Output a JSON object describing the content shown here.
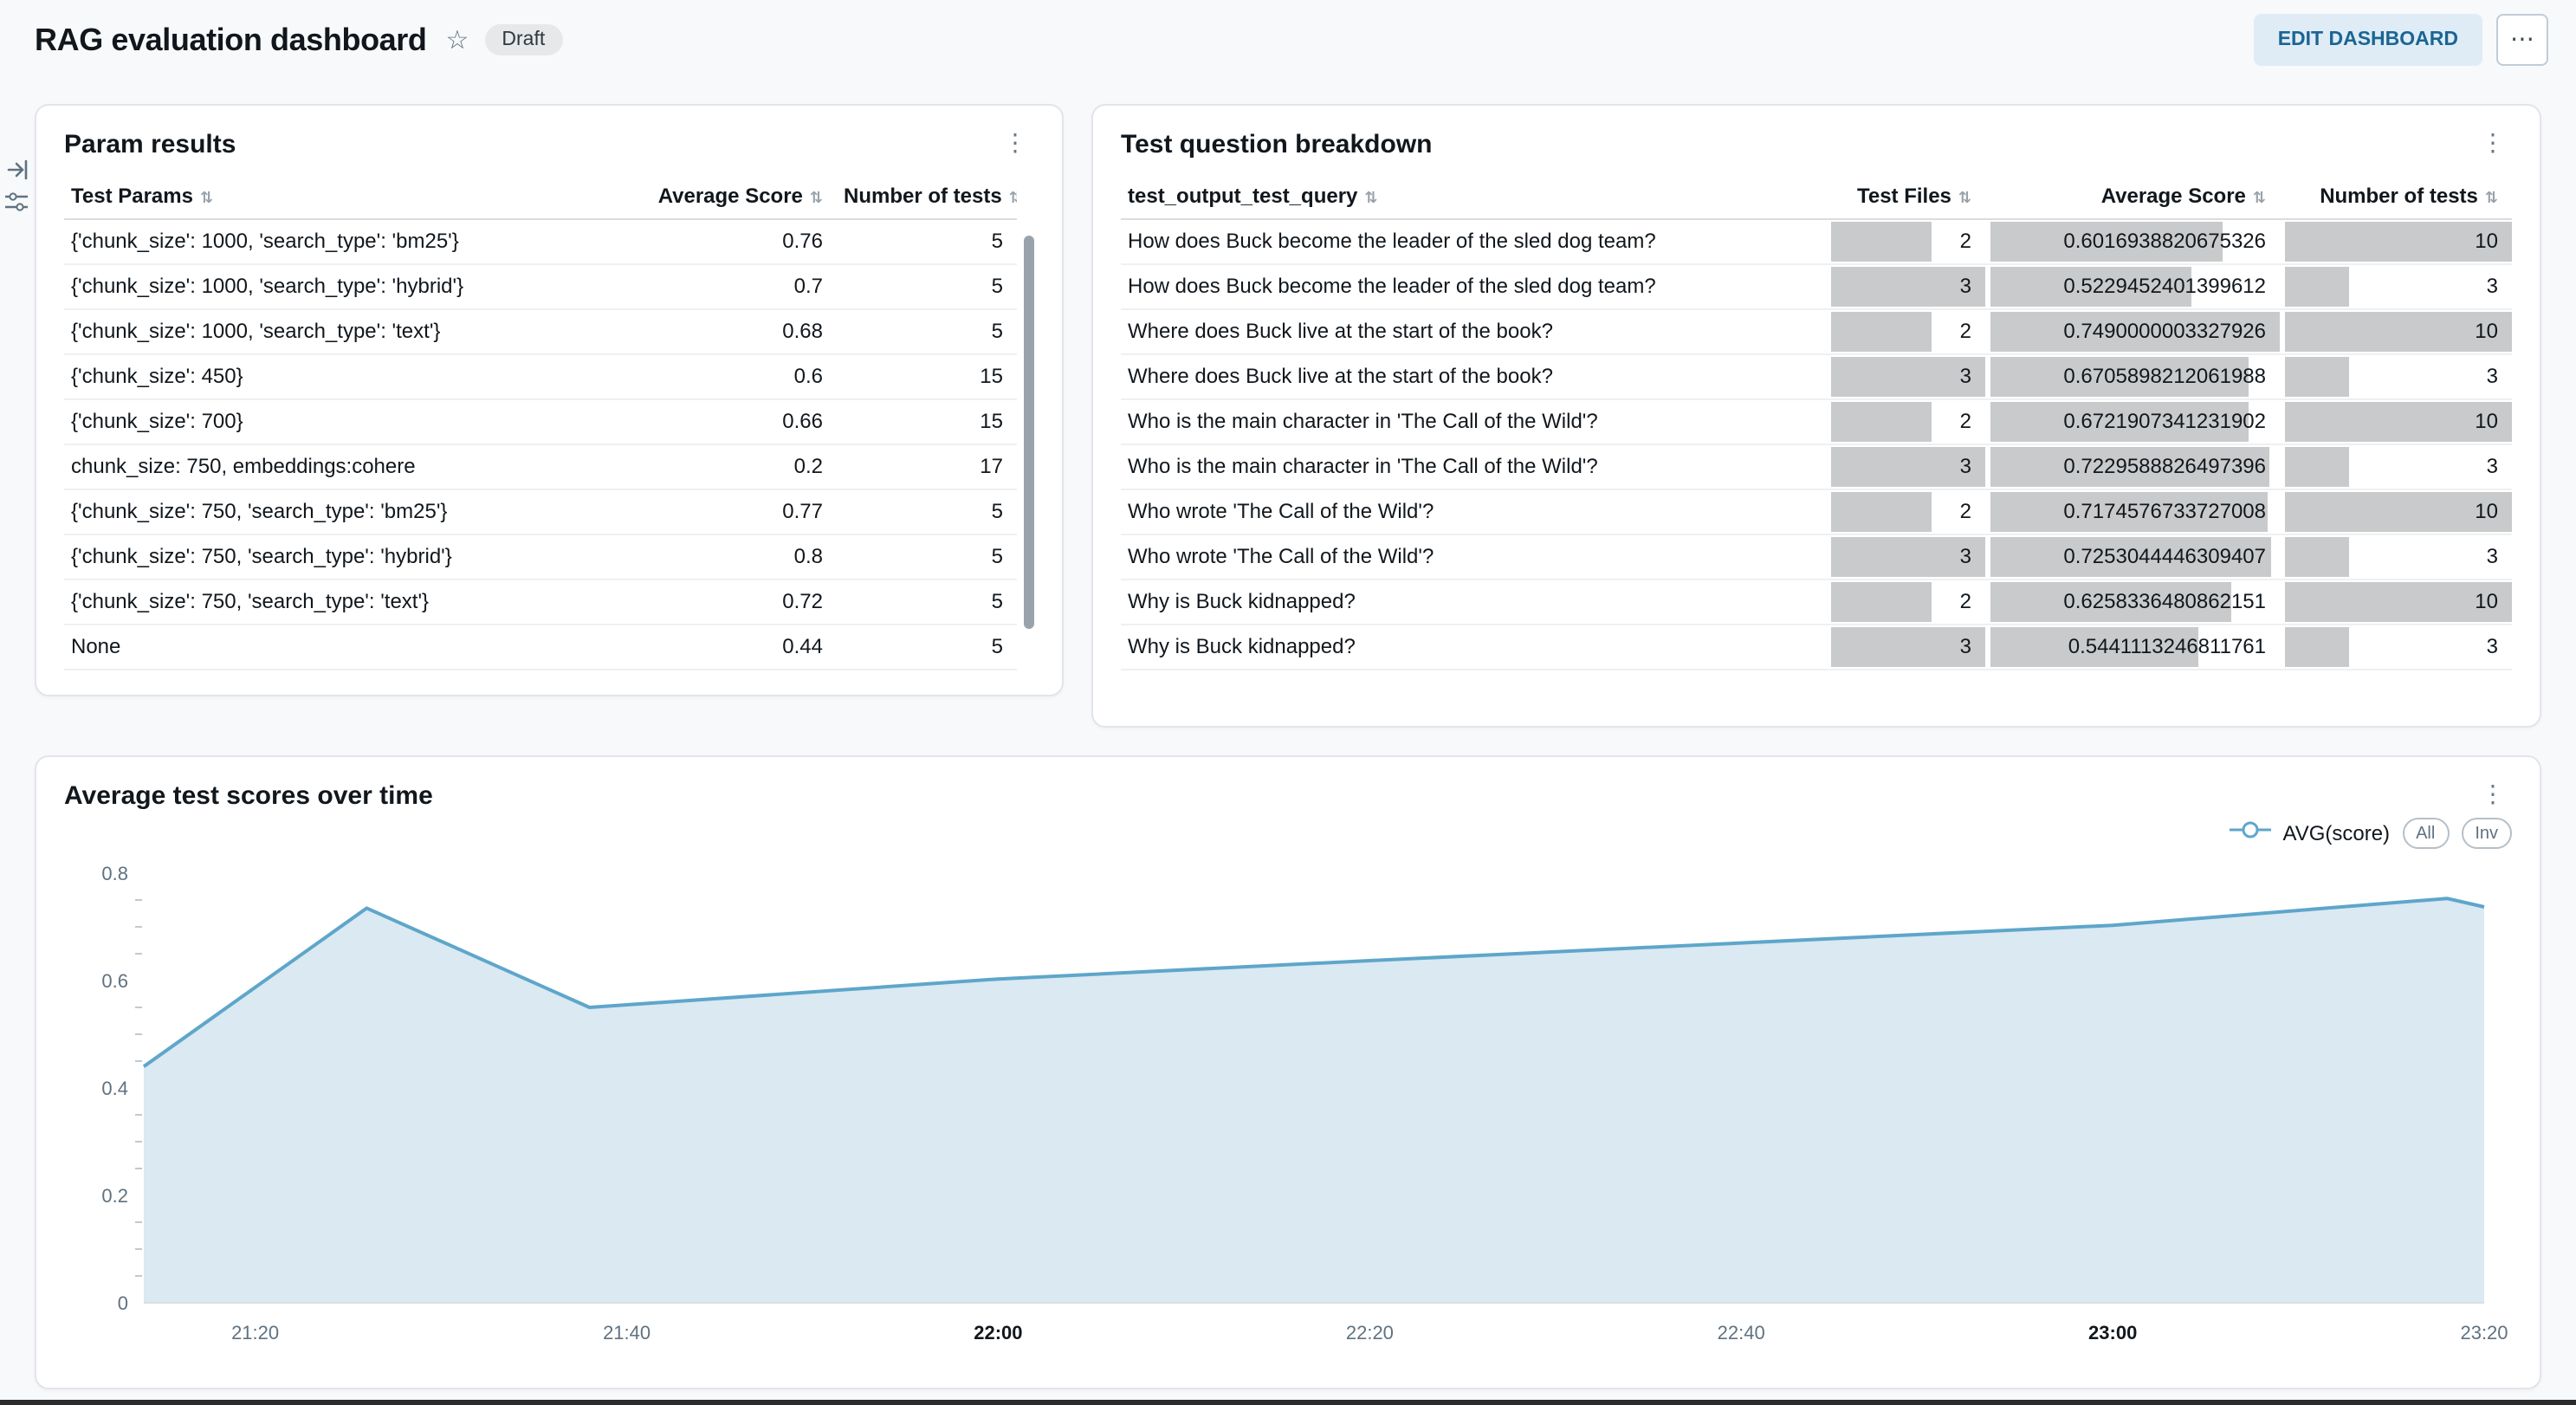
{
  "icons": {
    "star": "☆",
    "more_h": "⋯",
    "kebab_v": "⋮",
    "sort": "⇅",
    "panel_expand": "right-arrow-to-bar",
    "filter": "filter-sliders"
  },
  "header": {
    "title": "RAG evaluation dashboard",
    "status_badge": "Draft",
    "edit_button": "EDIT DASHBOARD"
  },
  "param_results": {
    "title": "Param results",
    "columns": [
      "Test Params",
      "Average Score",
      "Number of tests"
    ],
    "rows": [
      [
        "{'chunk_size': 1000, 'search_type': 'bm25'}",
        "0.76",
        "5"
      ],
      [
        "{'chunk_size': 1000, 'search_type': 'hybrid'}",
        "0.7",
        "5"
      ],
      [
        "{'chunk_size': 1000, 'search_type': 'text'}",
        "0.68",
        "5"
      ],
      [
        "{'chunk_size': 450}",
        "0.6",
        "15"
      ],
      [
        "{'chunk_size': 700}",
        "0.66",
        "15"
      ],
      [
        "chunk_size: 750, embeddings:cohere",
        "0.2",
        "17"
      ],
      [
        "{'chunk_size': 750, 'search_type': 'bm25'}",
        "0.77",
        "5"
      ],
      [
        "{'chunk_size': 750, 'search_type': 'hybrid'}",
        "0.8",
        "5"
      ],
      [
        "{'chunk_size': 750, 'search_type': 'text'}",
        "0.72",
        "5"
      ],
      [
        "None",
        "0.44",
        "5"
      ]
    ]
  },
  "question_breakdown": {
    "title": "Test question breakdown",
    "columns": [
      "test_output_test_query",
      "Test Files",
      "Average Score",
      "Number of tests"
    ],
    "col_max": [
      3,
      0.7490000003327926,
      10
    ],
    "bar_color": "#C9CACB",
    "rows": [
      {
        "query": "How does Buck become the leader of the sled dog team?",
        "test_files": "2",
        "avg_score": "0.6016938820675326",
        "num_tests": "10"
      },
      {
        "query": "How does Buck become the leader of the sled dog team?",
        "test_files": "3",
        "avg_score": "0.5229452401399612",
        "num_tests": "3"
      },
      {
        "query": "Where does Buck live at the start of the book?",
        "test_files": "2",
        "avg_score": "0.7490000003327926",
        "num_tests": "10"
      },
      {
        "query": "Where does Buck live at the start of the book?",
        "test_files": "3",
        "avg_score": "0.6705898212061988",
        "num_tests": "3"
      },
      {
        "query": "Who is the main character in 'The Call of the Wild'?",
        "test_files": "2",
        "avg_score": "0.6721907341231902",
        "num_tests": "10"
      },
      {
        "query": "Who is the main character in 'The Call of the Wild'?",
        "test_files": "3",
        "avg_score": "0.7229588826497396",
        "num_tests": "3"
      },
      {
        "query": "Who wrote 'The Call of the Wild'?",
        "test_files": "2",
        "avg_score": "0.7174576733727008",
        "num_tests": "10"
      },
      {
        "query": "Who wrote 'The Call of the Wild'?",
        "test_files": "3",
        "avg_score": "0.7253044446309407",
        "num_tests": "3"
      },
      {
        "query": "Why is Buck kidnapped?",
        "test_files": "2",
        "avg_score": "0.6258336480862151",
        "num_tests": "10"
      },
      {
        "query": "Why is Buck kidnapped?",
        "test_files": "3",
        "avg_score": "0.5441113246811761",
        "num_tests": "3"
      }
    ]
  },
  "chart_card": {
    "title": "Average test scores over time",
    "legend_label": "AVG(score)",
    "legend_buttons": [
      "All",
      "Inv"
    ]
  },
  "chart_data": {
    "type": "area",
    "title": "Average test scores over time",
    "series": [
      {
        "name": "AVG(score)",
        "points": [
          [
            "21:14",
            0.44
          ],
          [
            "21:26",
            0.735
          ],
          [
            "21:38",
            0.55
          ],
          [
            "22:00",
            0.603
          ],
          [
            "22:20",
            0.637
          ],
          [
            "22:40",
            0.67
          ],
          [
            "23:00",
            0.703
          ],
          [
            "23:18",
            0.753
          ],
          [
            "23:20",
            0.737
          ]
        ]
      }
    ],
    "xlabel": "",
    "ylabel": "",
    "ylim": [
      0,
      0.8
    ],
    "yticks": [
      0,
      0.2,
      0.4,
      0.6,
      0.8
    ],
    "y_minor_step": 0.05,
    "x_domain": [
      "21:14",
      "23:20"
    ],
    "xticks": [
      {
        "label": "21:20",
        "bold": false
      },
      {
        "label": "21:40",
        "bold": false
      },
      {
        "label": "22:00",
        "bold": true
      },
      {
        "label": "22:20",
        "bold": false
      },
      {
        "label": "22:40",
        "bold": false
      },
      {
        "label": "23:00",
        "bold": true
      },
      {
        "label": "23:20",
        "bold": false
      }
    ],
    "grid": false,
    "legend_position": "top-right",
    "line_color": "#5EA6CA",
    "fill_color": "#DAE9F2"
  }
}
